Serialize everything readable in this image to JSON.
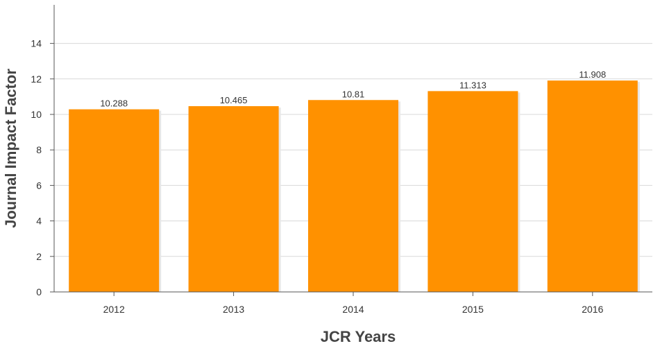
{
  "chart_data": {
    "type": "bar",
    "categories": [
      "2012",
      "2013",
      "2014",
      "2015",
      "2016"
    ],
    "values": [
      10.288,
      10.465,
      10.81,
      11.313,
      11.908
    ],
    "data_labels": [
      "10.288",
      "10.465",
      "10.81",
      "11.313",
      "11.908"
    ],
    "xlabel": "JCR Years",
    "ylabel": "Journal Impact Factor",
    "ylim": [
      0,
      16
    ],
    "yticks": [
      "0",
      "2",
      "4",
      "6",
      "8",
      "10",
      "12",
      "14"
    ],
    "grid": true,
    "legend": "none",
    "colors": {
      "bar": "#ff9100",
      "bar_shadow": "#e6e6e6",
      "grid": "#d8d8d8",
      "axis": "#555555"
    }
  }
}
